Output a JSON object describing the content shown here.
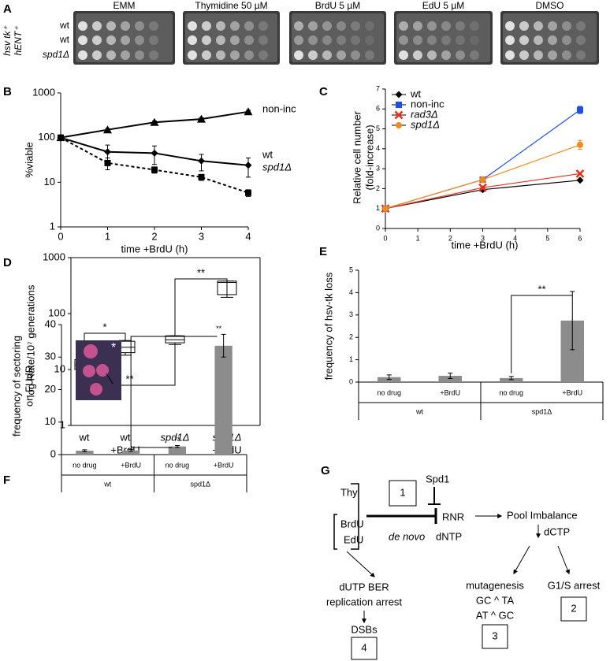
{
  "panel_a": {
    "letter": "A",
    "conditions": [
      "EMM",
      "Thymidine 50 µM",
      "BrdU 5 µM",
      "EdU 5 µM",
      "DMSO"
    ],
    "rows": [
      "wt",
      "wt",
      "spd1Δ"
    ],
    "strain_labels": [
      "hsv tk⁺",
      "hENT⁺"
    ]
  },
  "chart_data": [
    {
      "panel": "B",
      "type": "line",
      "log_y": true,
      "ylabel": "%viable",
      "xlabel": "time +BrdU (h)",
      "x": [
        0,
        1,
        2,
        3,
        4
      ],
      "xlim": [
        0,
        4
      ],
      "xticks": [
        0,
        1,
        2,
        3,
        4
      ],
      "ylim": [
        1,
        1000
      ],
      "yticks": [
        1,
        10,
        100,
        1000
      ],
      "series": [
        {
          "name": "non-inc",
          "color": "#000000",
          "marker": "triangle",
          "dashed": false,
          "values": [
            100,
            150,
            220,
            260,
            380
          ],
          "errors": [
            0,
            10,
            15,
            20,
            30
          ]
        },
        {
          "name": "wt",
          "color": "#000000",
          "marker": "diamond",
          "dashed": false,
          "values": [
            100,
            48,
            45,
            30,
            24
          ],
          "errors": [
            0,
            20,
            20,
            12,
            11
          ]
        },
        {
          "name": "spd1Δ",
          "color": "#000000",
          "marker": "square",
          "dashed": true,
          "values": [
            100,
            27,
            19,
            13,
            5.8
          ],
          "errors": [
            0,
            8,
            3,
            2,
            1
          ]
        }
      ]
    },
    {
      "panel": "C",
      "type": "line",
      "log_y": false,
      "ylabel": [
        "Relative cell number",
        "(fold-increase)"
      ],
      "xlabel": "time +BrdU (h)",
      "x": [
        0,
        3,
        6
      ],
      "xlim": [
        0,
        6
      ],
      "xticks": [
        0,
        1,
        2,
        3,
        4,
        5,
        6
      ],
      "ylim": [
        0,
        7
      ],
      "yticks": [
        0,
        1,
        2,
        3,
        4,
        5,
        6,
        7
      ],
      "legend": "top-left",
      "series": [
        {
          "name": "wt",
          "color": "#000000",
          "marker": "diamond",
          "dashed": false,
          "values": [
            1,
            1.95,
            2.42
          ],
          "errors": [
            0,
            0.08,
            0.05
          ]
        },
        {
          "name": "non-inc",
          "color": "#1f4fe0",
          "marker": "square",
          "dashed": false,
          "values": [
            1,
            2.45,
            5.95
          ],
          "errors": [
            0,
            0.1,
            0.18
          ]
        },
        {
          "name": "rad3Δ",
          "color": "#e8301c",
          "marker": "cross",
          "dashed": false,
          "values": [
            1,
            2.05,
            2.75
          ],
          "errors": [
            0,
            0.08,
            0.06
          ]
        },
        {
          "name": "spd1Δ",
          "color": "#f08a1c",
          "marker": "circle",
          "dashed": false,
          "values": [
            1,
            2.45,
            4.2
          ],
          "errors": [
            0,
            0.15,
            0.22
          ]
        }
      ]
    },
    {
      "panel": "D",
      "type": "box",
      "log_y": true,
      "ylabel": "log Rate/10⁷ generations",
      "ylim": [
        1,
        1000
      ],
      "yticks": [
        1,
        10,
        100,
        1000
      ],
      "categories": [
        [
          "wt"
        ],
        [
          "wt",
          "+BrdU"
        ],
        [
          "spd1Δ"
        ],
        [
          "spd1Δ",
          "+BrdU"
        ]
      ],
      "min": [
        10,
        18,
        28,
        195
      ],
      "q1": [
        10,
        20,
        30,
        218
      ],
      "median": [
        12,
        25,
        34,
        360
      ],
      "q3": [
        15,
        32,
        40,
        380
      ],
      "max": [
        15,
        33,
        40,
        380
      ],
      "annotations": [
        "*",
        "**",
        "**"
      ]
    },
    {
      "panel": "E",
      "type": "bar",
      "ylabel": "frequency of hsv-tk loss",
      "ylim": [
        0,
        5
      ],
      "yticks": [
        0,
        1,
        2,
        3,
        4,
        5
      ],
      "color": "#8c8c8c",
      "categories": [
        "no drug",
        "+BrdU",
        "no drug",
        "+BrdU"
      ],
      "groups": [
        "wt",
        "spd1Δ"
      ],
      "values": [
        0.22,
        0.28,
        0.18,
        2.75
      ],
      "errors": [
        0.1,
        0.12,
        0.07,
        1.3
      ],
      "annotations": [
        "**"
      ]
    },
    {
      "panel": "F",
      "type": "bar",
      "ylabel": [
        "frequency of sectoring",
        "on FUdR"
      ],
      "ylim": [
        0,
        40
      ],
      "yticks": [
        0,
        10,
        20,
        30,
        40
      ],
      "color": "#8c8c8c",
      "categories": [
        "no drug",
        "+BrdU",
        "no drug",
        "+BrdU"
      ],
      "groups": [
        "wt",
        "spd1Δ"
      ],
      "values": [
        1.2,
        1.3,
        2.5,
        33.5
      ],
      "errors": [
        0.3,
        0.3,
        0.3,
        3.5
      ],
      "annotations": [
        "**",
        "**"
      ],
      "inset_mark": "*"
    }
  ],
  "panel_g": {
    "letter": "G",
    "thy": "Thy",
    "brdu": "BrdU",
    "edu": "EdU",
    "spd1": "Spd1",
    "rnr": "RNR",
    "de_novo": "de novo",
    "dntp": "dNTP",
    "pool": "Pool Imbalance",
    "dctp": "dCTP",
    "mutagenesis": "mutagenesis",
    "gc_ta": "GC ^ TA",
    "at_gc": "AT ^ GC",
    "g1s": "G1/S arrest",
    "dutp": "dUTP BER",
    "replication": "replication arrest",
    "dsbs": "DSBs",
    "boxes": [
      "1",
      "2",
      "3",
      "4"
    ]
  }
}
